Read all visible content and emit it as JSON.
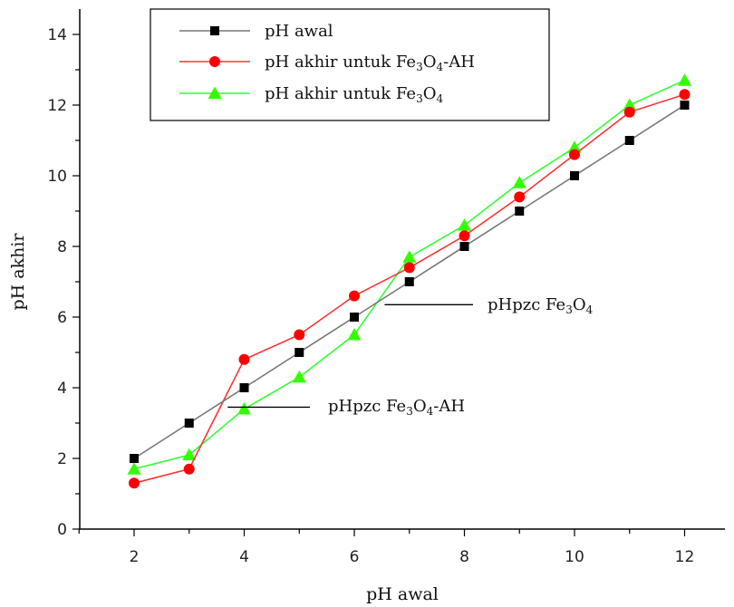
{
  "chart_data": {
    "type": "line",
    "title": "",
    "xlabel": "pH awal",
    "ylabel": "pH akhir",
    "xlim": [
      1,
      13
    ],
    "ylim": [
      0,
      14
    ],
    "x_ticks": [
      2,
      4,
      6,
      8,
      10,
      12
    ],
    "y_ticks": [
      0,
      2,
      4,
      6,
      8,
      10,
      12,
      14
    ],
    "x": [
      2,
      3,
      4,
      5,
      6,
      7,
      8,
      9,
      10,
      11,
      12
    ],
    "legend_position": "top-left",
    "series": [
      {
        "name": "pH awal",
        "name_parts": [
          {
            "t": "pH awal"
          }
        ],
        "marker": "square",
        "line_color": "#777777",
        "marker_color": "#000000",
        "values": [
          2.0,
          3.0,
          4.0,
          5.0,
          6.0,
          7.0,
          8.0,
          9.0,
          10.0,
          11.0,
          12.0
        ]
      },
      {
        "name": "pH akhir untuk Fe3O4-AH",
        "name_parts": [
          {
            "t": "pH akhir untuk Fe"
          },
          {
            "t": "3",
            "sub": true
          },
          {
            "t": "O"
          },
          {
            "t": "4",
            "sub": true
          },
          {
            "t": "-AH"
          }
        ],
        "marker": "circle",
        "line_color": "#ff3333",
        "marker_color": "#ff0000",
        "values": [
          1.3,
          1.7,
          4.8,
          5.5,
          6.6,
          7.4,
          8.3,
          9.4,
          10.6,
          11.8,
          12.3
        ]
      },
      {
        "name": "pH akhir untuk Fe3O4",
        "name_parts": [
          {
            "t": "pH akhir untuk Fe"
          },
          {
            "t": "3",
            "sub": true
          },
          {
            "t": "O"
          },
          {
            "t": "4",
            "sub": true
          }
        ],
        "marker": "triangle",
        "line_color": "#33ff33",
        "marker_color": "#33ff00",
        "values": [
          1.7,
          2.1,
          3.4,
          4.3,
          5.5,
          7.7,
          8.6,
          9.8,
          10.8,
          12.0,
          12.7
        ]
      }
    ],
    "annotations": [
      {
        "text": "pHpzc Fe3O4",
        "parts": [
          {
            "t": "pHpzc Fe"
          },
          {
            "t": "3",
            "sub": true
          },
          {
            "t": "O"
          },
          {
            "t": "4",
            "sub": true
          }
        ],
        "point": [
          6.55,
          6.35
        ]
      },
      {
        "text": "pHpzc Fe3O4-AH",
        "parts": [
          {
            "t": "pHpzc Fe"
          },
          {
            "t": "3",
            "sub": true
          },
          {
            "t": "O"
          },
          {
            "t": "4",
            "sub": true
          },
          {
            "t": "-AH"
          }
        ],
        "point": [
          3.7,
          3.45
        ]
      }
    ]
  }
}
